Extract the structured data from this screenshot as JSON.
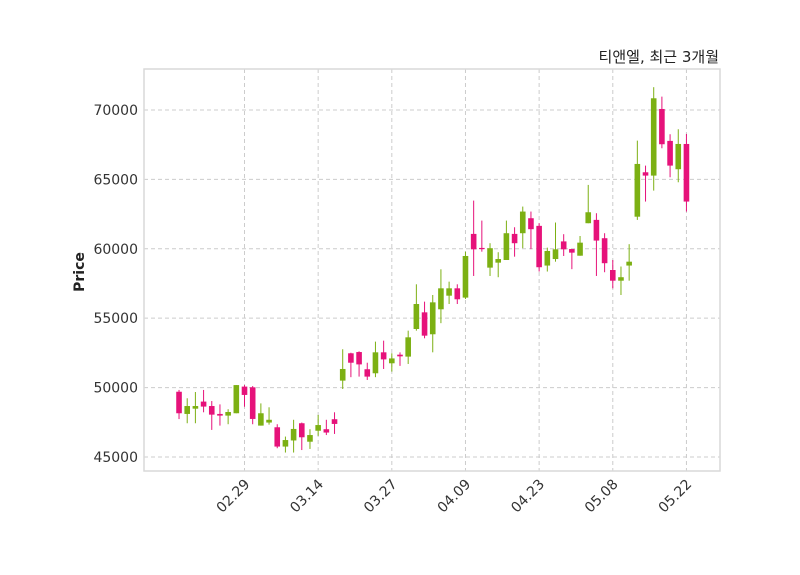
{
  "chart_data": {
    "type": "candlestick",
    "title": "티앤엘, 최근 3개월",
    "xlabel": "",
    "ylabel": "Price",
    "ylim": [
      43990,
      72950
    ],
    "yticks": [
      45000,
      50000,
      55000,
      60000,
      65000,
      70000
    ],
    "xtick_labels": [
      "02.29",
      "03.14",
      "03.27",
      "04.09",
      "04.23",
      "05.08",
      "05.22"
    ],
    "grid": true,
    "colors": {
      "up": "#7cb013",
      "down": "#e6127a",
      "grid": "#cccccc",
      "frame": "#d9d9d9"
    },
    "dates": [
      "02.19",
      "02.20",
      "02.21",
      "02.22",
      "02.23",
      "02.26",
      "02.27",
      "02.28",
      "02.29",
      "03.04",
      "03.05",
      "03.06",
      "03.07",
      "03.08",
      "03.11",
      "03.12",
      "03.13",
      "03.14",
      "03.15",
      "03.18",
      "03.19",
      "03.20",
      "03.21",
      "03.22",
      "03.25",
      "03.26",
      "03.27",
      "03.28",
      "03.29",
      "04.01",
      "04.02",
      "04.03",
      "04.04",
      "04.05",
      "04.08",
      "04.09",
      "04.11",
      "04.12",
      "04.15",
      "04.16",
      "04.17",
      "04.18",
      "04.19",
      "04.22",
      "04.23",
      "04.24",
      "04.25",
      "04.26",
      "04.29",
      "04.30",
      "05.02",
      "05.03",
      "05.07",
      "05.08",
      "05.09",
      "05.10",
      "05.13",
      "05.14",
      "05.16",
      "05.17",
      "05.20",
      "05.21",
      "05.22"
    ],
    "open": [
      49700,
      48100,
      48480,
      48990,
      48670,
      48100,
      47980,
      48150,
      50070,
      50020,
      47260,
      47480,
      47140,
      45750,
      46190,
      47430,
      46100,
      46890,
      47000,
      47720,
      50500,
      52470,
      52560,
      51320,
      51030,
      52540,
      51750,
      52370,
      52230,
      54220,
      55420,
      53840,
      55640,
      56620,
      57150,
      56480,
      61070,
      60060,
      58640,
      59000,
      59190,
      61070,
      61120,
      62200,
      61650,
      58790,
      59260,
      60530,
      59980,
      59500,
      61840,
      62080,
      60760,
      58470,
      57700,
      58790,
      62310,
      65510,
      65270,
      70070,
      67770,
      65730,
      67550
    ],
    "high": [
      49830,
      49230,
      49680,
      49830,
      49030,
      48790,
      48440,
      50180,
      50180,
      50110,
      48860,
      48580,
      47360,
      46470,
      47680,
      47480,
      47000,
      48030,
      47680,
      48220,
      52760,
      52510,
      52610,
      51790,
      53310,
      53380,
      52470,
      52540,
      54100,
      57440,
      56190,
      56670,
      58520,
      57630,
      57440,
      59790,
      63470,
      62030,
      60400,
      59750,
      62030,
      61550,
      63040,
      62680,
      61840,
      60080,
      61890,
      61050,
      59980,
      60920,
      64600,
      62560,
      61120,
      59190,
      58720,
      60330,
      67790,
      65990,
      71640,
      70960,
      68250,
      68610,
      68270
    ],
    "low": [
      47730,
      47430,
      47430,
      48220,
      46950,
      47260,
      47360,
      48150,
      48620,
      47360,
      47260,
      47330,
      45630,
      45320,
      45320,
      45500,
      45580,
      46520,
      46580,
      46660,
      49900,
      50750,
      50790,
      50550,
      50750,
      51340,
      51150,
      51560,
      51700,
      54100,
      53550,
      52540,
      54640,
      56020,
      56020,
      56380,
      58040,
      59790,
      58040,
      57950,
      59190,
      59430,
      60040,
      59970,
      58360,
      58360,
      59070,
      59480,
      58530,
      59500,
      61840,
      58040,
      58310,
      57150,
      56670,
      57700,
      62080,
      63400,
      64190,
      67240,
      65150,
      64790,
      62680
    ],
    "close": [
      48150,
      48670,
      48670,
      48630,
      48050,
      47980,
      48240,
      50180,
      49470,
      47740,
      48150,
      47680,
      45750,
      46220,
      47020,
      46420,
      46580,
      47300,
      46760,
      47380,
      51340,
      51790,
      51670,
      50790,
      52540,
      52030,
      52100,
      52250,
      53620,
      56020,
      53740,
      56140,
      57150,
      57150,
      56360,
      59480,
      59960,
      60020,
      60040,
      59260,
      61120,
      60400,
      62680,
      61410,
      58670,
      59840,
      59960,
      59960,
      59720,
      60440,
      62630,
      60590,
      58960,
      57700,
      57950,
      59070,
      66110,
      65270,
      70840,
      67530,
      65990,
      67550,
      63400
    ]
  }
}
